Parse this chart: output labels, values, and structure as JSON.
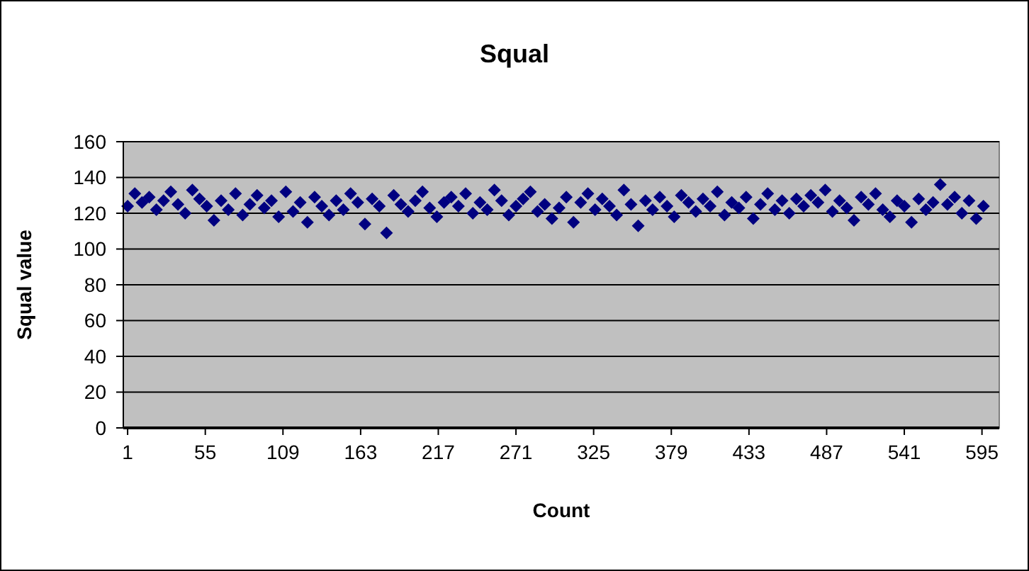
{
  "chart_data": {
    "type": "scatter",
    "title": "Squal",
    "xlabel": "Count",
    "ylabel": "Squal value",
    "x": [
      1,
      6,
      11,
      16,
      21,
      26,
      31,
      36,
      41,
      46,
      51,
      56,
      61,
      66,
      71,
      76,
      81,
      86,
      91,
      96,
      101,
      106,
      111,
      116,
      121,
      126,
      131,
      136,
      141,
      146,
      151,
      156,
      161,
      166,
      171,
      176,
      181,
      186,
      191,
      196,
      201,
      206,
      211,
      216,
      221,
      226,
      231,
      236,
      241,
      246,
      251,
      256,
      261,
      266,
      271,
      276,
      281,
      286,
      291,
      296,
      301,
      306,
      311,
      316,
      321,
      326,
      331,
      336,
      341,
      346,
      351,
      356,
      361,
      366,
      371,
      376,
      381,
      386,
      391,
      396,
      401,
      406,
      411,
      416,
      421,
      426,
      431,
      436,
      441,
      446,
      451,
      456,
      461,
      466,
      471,
      476,
      481,
      486,
      491,
      496,
      501,
      506,
      511,
      516,
      521,
      526,
      531,
      536,
      541,
      546,
      551,
      556,
      561,
      566,
      571,
      576,
      581,
      586,
      591,
      596
    ],
    "series": [
      {
        "color": "#000080",
        "values": [
          124,
          131,
          126,
          129,
          122,
          127,
          132,
          125,
          120,
          133,
          128,
          124,
          116,
          127,
          122,
          131,
          119,
          125,
          130,
          123,
          127,
          118,
          132,
          121,
          126,
          115,
          129,
          124,
          119,
          127,
          122,
          131,
          126,
          114,
          128,
          124,
          109,
          130,
          125,
          121,
          127,
          132,
          123,
          118,
          126,
          129,
          124,
          131,
          120,
          126,
          122,
          133,
          127,
          119,
          124,
          128,
          132,
          121,
          125,
          117,
          123,
          129,
          115,
          126,
          131,
          122,
          128,
          124,
          119,
          133,
          125,
          113,
          127,
          122,
          129,
          124,
          118,
          130,
          126,
          121,
          128,
          124,
          132,
          119,
          126,
          123,
          129,
          117,
          125,
          131,
          122,
          127,
          120,
          128,
          124,
          130,
          126,
          133,
          121,
          127,
          123,
          116,
          129,
          125,
          131,
          122,
          118,
          127,
          124,
          115,
          128,
          122,
          126,
          136,
          125,
          129,
          120,
          127,
          117,
          124
        ]
      }
    ],
    "xlim": [
      -2,
      607
    ],
    "xticks": [
      1,
      55,
      109,
      163,
      217,
      271,
      325,
      379,
      433,
      487,
      541,
      595
    ],
    "ylim": [
      0,
      160
    ],
    "yticks": [
      0,
      20,
      40,
      60,
      80,
      100,
      120,
      140,
      160
    ],
    "grid": "y",
    "marker": "diamond"
  }
}
